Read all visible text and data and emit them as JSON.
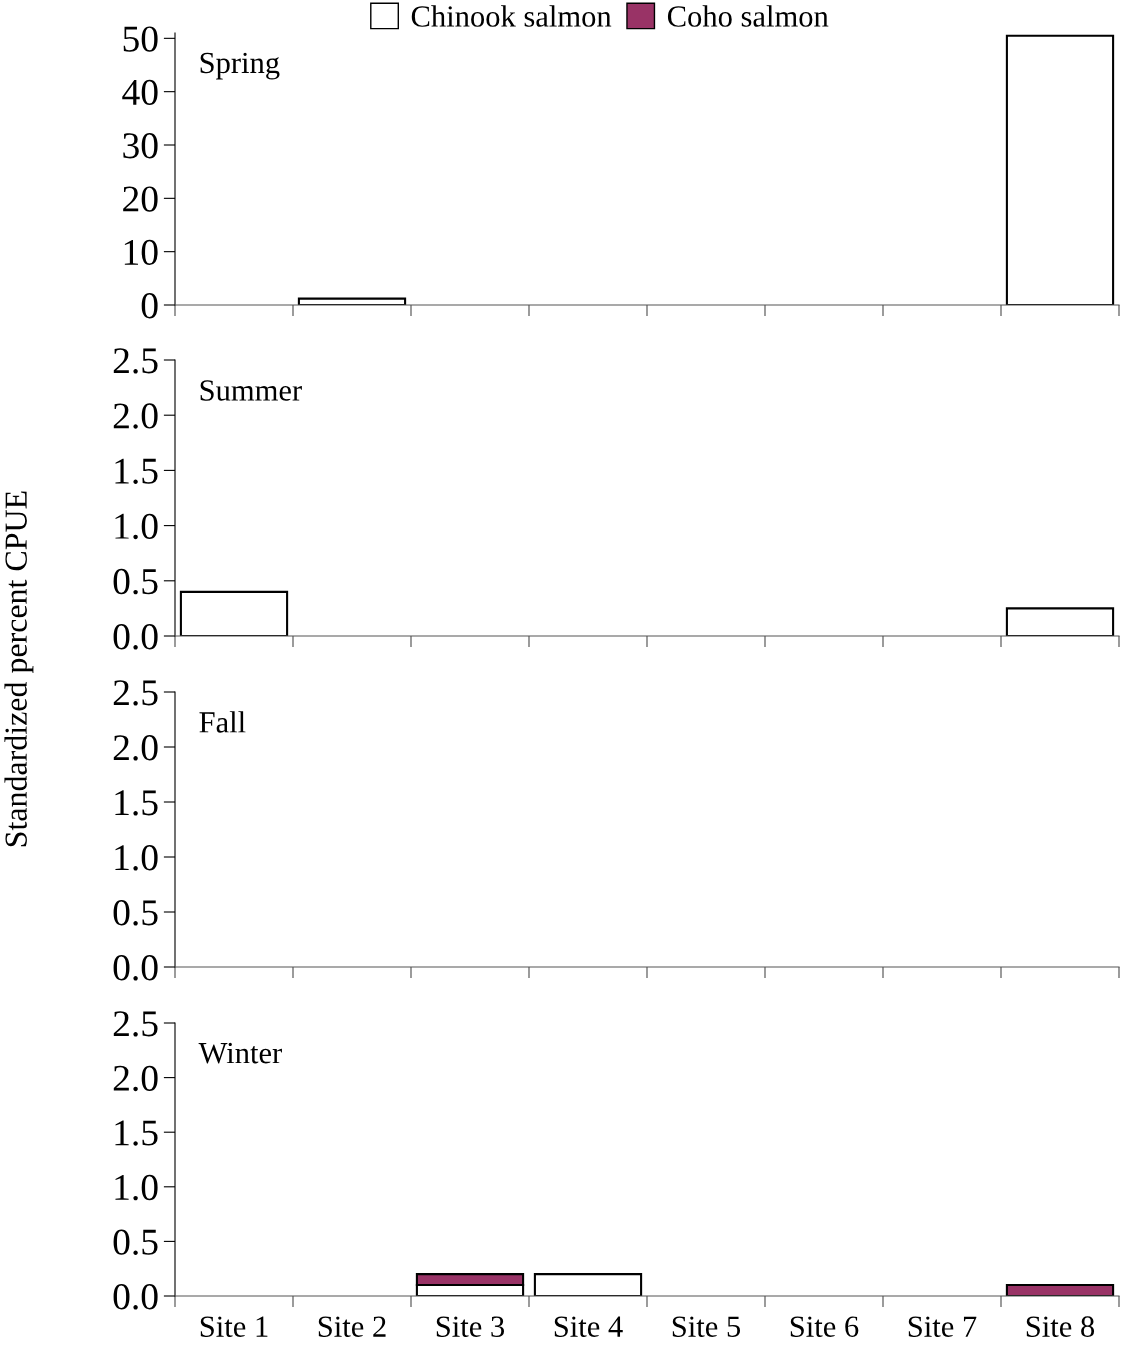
{
  "chart_data": [
    {
      "type": "bar",
      "title": "Spring",
      "stacked": true,
      "legend": "top",
      "tick_labels": "y",
      "categories": [
        null,
        null,
        null,
        null,
        null,
        null,
        null,
        null
      ],
      "series": [
        {
          "name": "Chinook salmon",
          "color": "#ffffff",
          "values": [
            null,
            1.2,
            null,
            null,
            null,
            null,
            null,
            50.5
          ]
        },
        {
          "name": "Coho salmon",
          "color": "#993366",
          "values": [
            null,
            null,
            null,
            null,
            null,
            null,
            null,
            null
          ]
        }
      ],
      "ylim": [
        0,
        51
      ],
      "yticks": [
        0,
        10,
        20,
        30,
        40,
        50
      ]
    },
    {
      "type": "bar",
      "title": "Summer",
      "ylabel": "Standardized percent CPUE",
      "stacked": true,
      "tick_labels": "y",
      "categories": [
        null,
        null,
        null,
        null,
        null,
        null,
        null,
        null
      ],
      "series": [
        {
          "color": "#ffffff",
          "values": [
            0.4,
            null,
            null,
            null,
            null,
            null,
            null,
            0.25
          ]
        }
      ],
      "ylim": [
        0,
        2.5
      ],
      "yticks": [
        {
          "value": 0,
          "label": "0.0"
        },
        {
          "value": 0.5,
          "label": "0.5"
        },
        {
          "value": 1,
          "label": "1.0"
        },
        {
          "value": 1.5,
          "label": "1.5"
        },
        {
          "value": 2,
          "label": "2.0"
        },
        {
          "value": 2.5,
          "label": "2.5"
        }
      ]
    },
    {
      "type": "bar",
      "title": "Fall",
      "tick_labels": "y",
      "categories": [
        null,
        null,
        null,
        null,
        null,
        null,
        null,
        null
      ],
      "ylim": [
        0,
        2.5
      ],
      "yticks": [
        {
          "value": 0,
          "label": "0.0"
        },
        {
          "value": 0.5,
          "label": "0.5"
        },
        {
          "value": 1,
          "label": "1.0"
        },
        {
          "value": 1.5,
          "label": "1.5"
        },
        {
          "value": 2,
          "label": "2.0"
        },
        {
          "value": 2.5,
          "label": "2.5"
        }
      ]
    },
    {
      "type": "bar",
      "title": "Winter",
      "stacked": true,
      "categories": [
        "Site 1",
        "Site 2",
        "Site 3",
        "Site 4",
        "Site 5",
        "Site 6",
        "Site 7",
        "Site 8"
      ],
      "series": [
        {
          "color": "#ffffff",
          "values": [
            null,
            null,
            0.1,
            0.2,
            null,
            null,
            null,
            null
          ]
        },
        {
          "color": "#993366",
          "values": [
            null,
            null,
            0.1,
            null,
            null,
            null,
            null,
            0.1
          ]
        }
      ],
      "ylim": [
        0,
        2.5
      ],
      "yticks": [
        {
          "value": 0,
          "label": "0.0"
        },
        {
          "value": 0.5,
          "label": "0.5"
        },
        {
          "value": 1,
          "label": "1.0"
        },
        {
          "value": 1.5,
          "label": "1.5"
        },
        {
          "value": 2,
          "label": "2.0"
        },
        {
          "value": 2.5,
          "label": "2.5"
        }
      ]
    }
  ]
}
